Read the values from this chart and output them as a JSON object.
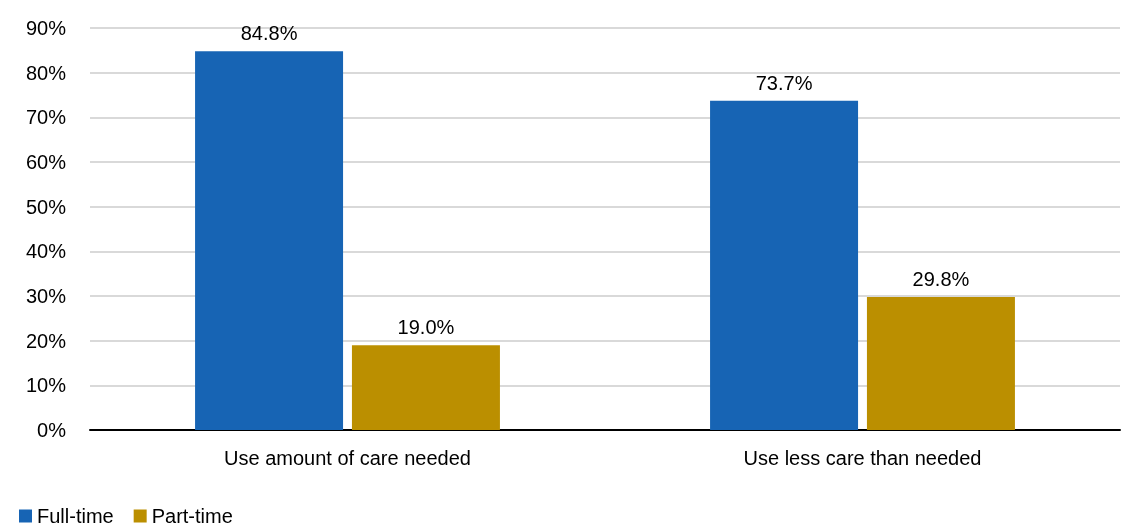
{
  "chart_data": {
    "type": "bar",
    "categories": [
      "Use amount of care needed",
      "Use less care than needed"
    ],
    "series": [
      {
        "name": "Full-time",
        "color": "#1764b4",
        "values": [
          84.8,
          73.7
        ],
        "value_labels": [
          "84.8%",
          "73.7%"
        ]
      },
      {
        "name": "Part-time",
        "color": "#bb8f00",
        "values": [
          19.0,
          29.8
        ],
        "value_labels": [
          "19.0%",
          "29.8%"
        ]
      }
    ],
    "ylim": [
      0,
      90
    ],
    "yticks": [
      {
        "value": 0,
        "label": "0%"
      },
      {
        "value": 10,
        "label": "10%"
      },
      {
        "value": 20,
        "label": "20%"
      },
      {
        "value": 30,
        "label": "30%"
      },
      {
        "value": 40,
        "label": "40%"
      },
      {
        "value": 50,
        "label": "50%"
      },
      {
        "value": 60,
        "label": "60%"
      },
      {
        "value": 70,
        "label": "70%"
      },
      {
        "value": 80,
        "label": "80%"
      },
      {
        "value": 90,
        "label": "90%"
      }
    ],
    "grid": "y",
    "legend": "bottom left"
  }
}
